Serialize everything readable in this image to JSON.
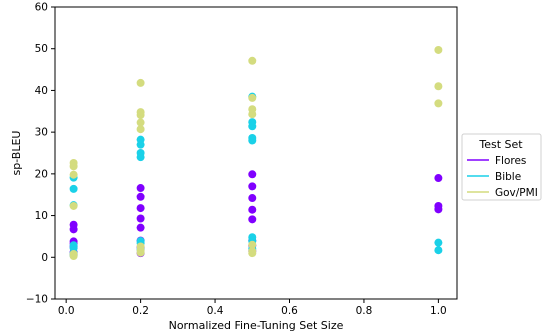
{
  "chart_data": {
    "type": "scatter",
    "xlabel": "Normalized Fine-Tuning Set Size",
    "ylabel": "sp-BLEU",
    "xlim": [
      -0.03,
      1.05
    ],
    "ylim": [
      -10,
      60
    ],
    "xticks": [
      0.0,
      0.2,
      0.4,
      0.6,
      0.8,
      1.0
    ],
    "xtick_labels": [
      "0.0",
      "0.2",
      "0.4",
      "0.6",
      "0.8",
      "1.0"
    ],
    "yticks": [
      -10,
      0,
      10,
      20,
      30,
      40,
      50,
      60
    ],
    "ytick_labels": [
      "−10",
      "0",
      "10",
      "20",
      "30",
      "40",
      "50",
      "60"
    ],
    "grid": false,
    "legend": {
      "title": "Test Set",
      "position": "right-outside"
    },
    "series": [
      {
        "name": "Flores",
        "color": "#8000ff",
        "points": [
          [
            0.02,
            7.8
          ],
          [
            0.02,
            6.7
          ],
          [
            0.02,
            3.8
          ],
          [
            0.02,
            3.3
          ],
          [
            0.02,
            2.5
          ],
          [
            0.02,
            1.2
          ],
          [
            0.02,
            0.6
          ],
          [
            0.2,
            16.6
          ],
          [
            0.2,
            14.5
          ],
          [
            0.2,
            11.8
          ],
          [
            0.2,
            9.3
          ],
          [
            0.2,
            7.1
          ],
          [
            0.2,
            4.0
          ],
          [
            0.2,
            2.4
          ],
          [
            0.2,
            1.0
          ],
          [
            0.5,
            19.9
          ],
          [
            0.5,
            17.0
          ],
          [
            0.5,
            14.2
          ],
          [
            0.5,
            11.4
          ],
          [
            0.5,
            9.1
          ],
          [
            0.5,
            4.0
          ],
          [
            0.5,
            2.8
          ],
          [
            0.5,
            1.5
          ],
          [
            1.0,
            19.0
          ],
          [
            1.0,
            12.3
          ],
          [
            1.0,
            11.5
          ]
        ]
      },
      {
        "name": "Bible",
        "color": "#1ad1e8",
        "points": [
          [
            0.02,
            19.1
          ],
          [
            0.02,
            16.4
          ],
          [
            0.02,
            12.5
          ],
          [
            0.02,
            2.9
          ],
          [
            0.02,
            2.2
          ],
          [
            0.02,
            1.0
          ],
          [
            0.02,
            0.4
          ],
          [
            0.2,
            28.2
          ],
          [
            0.2,
            27.0
          ],
          [
            0.2,
            25.0
          ],
          [
            0.2,
            24.0
          ],
          [
            0.2,
            3.9
          ],
          [
            0.2,
            3.4
          ],
          [
            0.2,
            1.8
          ],
          [
            0.5,
            38.5
          ],
          [
            0.5,
            32.4
          ],
          [
            0.5,
            31.4
          ],
          [
            0.5,
            28.6
          ],
          [
            0.5,
            28.0
          ],
          [
            0.5,
            4.8
          ],
          [
            0.5,
            3.9
          ],
          [
            0.5,
            2.0
          ],
          [
            1.0,
            3.5
          ],
          [
            1.0,
            1.7
          ]
        ]
      },
      {
        "name": "Gov/PMI",
        "color": "#d4dc7f",
        "points": [
          [
            0.02,
            22.6
          ],
          [
            0.02,
            21.8
          ],
          [
            0.02,
            19.8
          ],
          [
            0.02,
            12.3
          ],
          [
            0.02,
            0.8
          ],
          [
            0.02,
            0.3
          ],
          [
            0.2,
            41.8
          ],
          [
            0.2,
            34.8
          ],
          [
            0.2,
            34.1
          ],
          [
            0.2,
            32.3
          ],
          [
            0.2,
            30.7
          ],
          [
            0.2,
            2.6
          ],
          [
            0.2,
            1.7
          ],
          [
            0.2,
            1.1
          ],
          [
            0.5,
            47.1
          ],
          [
            0.5,
            38.2
          ],
          [
            0.5,
            35.5
          ],
          [
            0.5,
            34.3
          ],
          [
            0.5,
            3.0
          ],
          [
            0.5,
            1.5
          ],
          [
            0.5,
            1.0
          ],
          [
            1.0,
            49.7
          ],
          [
            1.0,
            41.0
          ],
          [
            1.0,
            36.9
          ]
        ]
      }
    ]
  }
}
